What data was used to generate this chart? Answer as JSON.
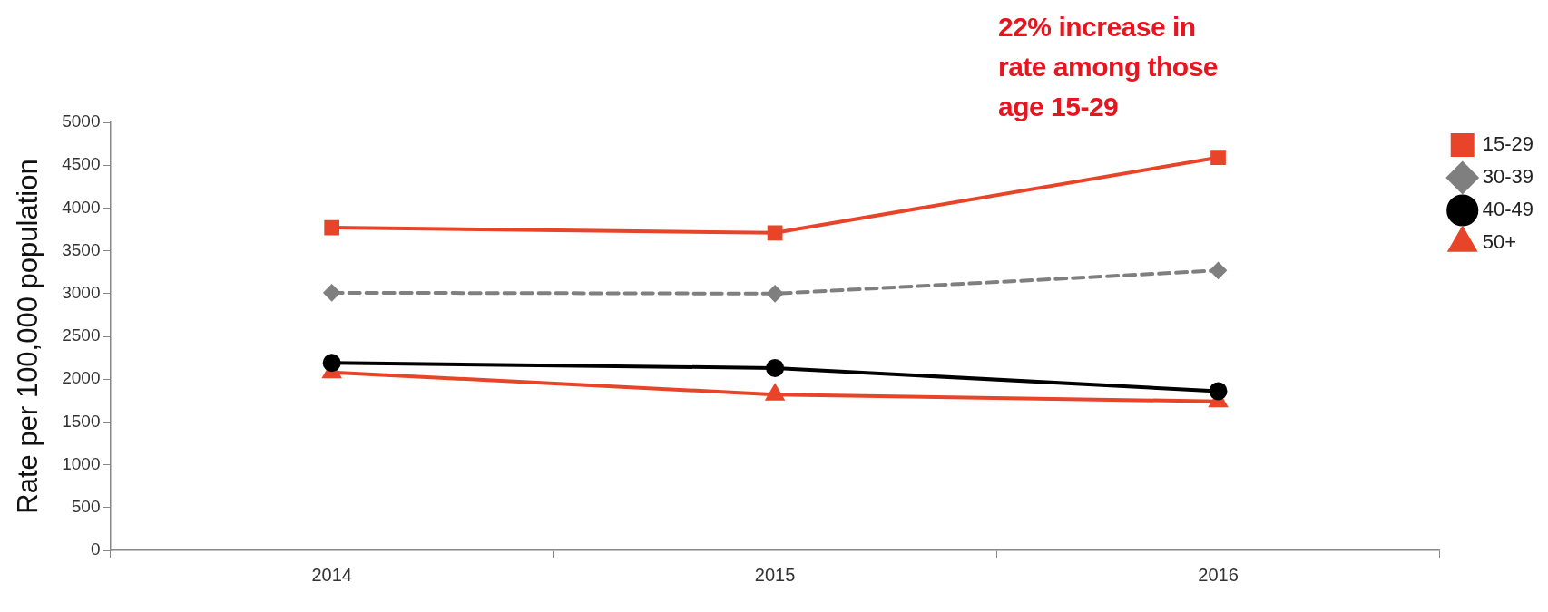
{
  "chart_data": {
    "type": "line",
    "ylabel": "Rate per 100,000 population",
    "categories": [
      "2014",
      "2015",
      "2016"
    ],
    "series": [
      {
        "name": "15-29",
        "color": "#e8442a",
        "values": [
          3770,
          3710,
          4590
        ],
        "marker": "square",
        "line_style": "solid"
      },
      {
        "name": "30-39",
        "color": "#7f7f7f",
        "values": [
          3010,
          3000,
          3270
        ],
        "marker": "diamond",
        "line_style": "dashed"
      },
      {
        "name": "40-49",
        "color": "#000000",
        "values": [
          2190,
          2130,
          1860
        ],
        "marker": "circle",
        "line_style": "solid"
      },
      {
        "name": "50+",
        "color": "#e8442a",
        "values": [
          2080,
          1820,
          1740
        ],
        "marker": "triangle",
        "line_style": "solid"
      }
    ],
    "ylim": [
      0,
      5000
    ],
    "yticks": [
      0,
      500,
      1000,
      1500,
      2000,
      2500,
      3000,
      3500,
      4000,
      4500,
      5000
    ],
    "grid": false,
    "legend": "right",
    "annotations": [
      "22% increase in rate among those age 15-29"
    ]
  }
}
